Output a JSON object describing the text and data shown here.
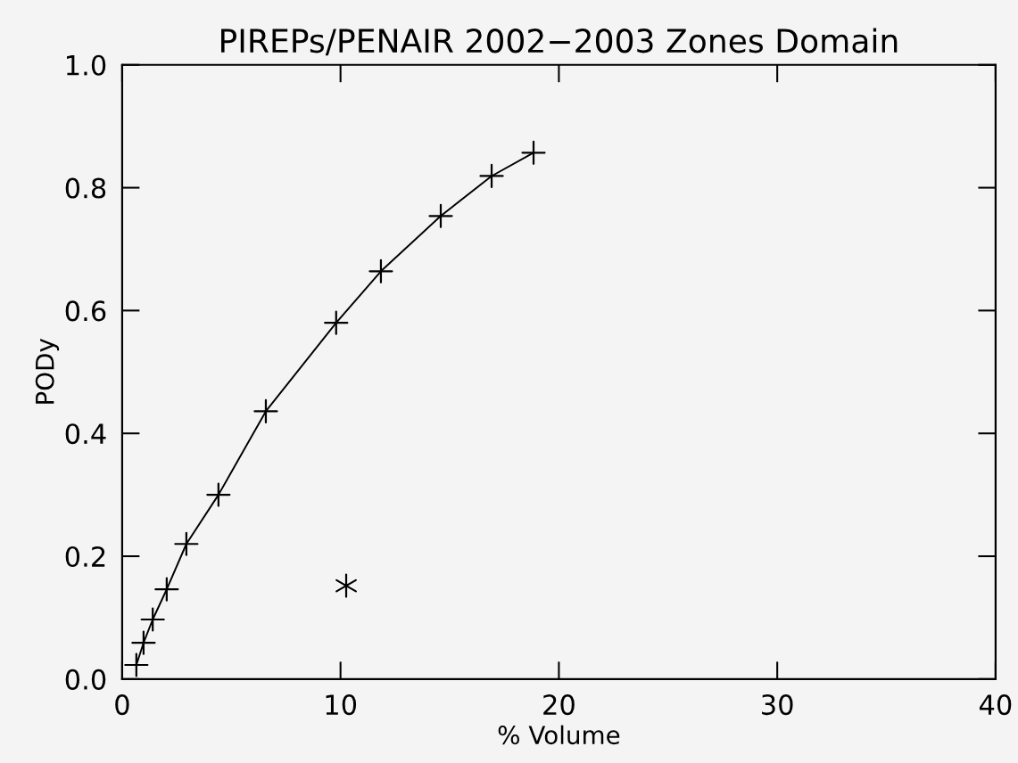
{
  "chart_data": {
    "type": "line",
    "title": "PIREPs/PENAIR 2002−2003 Zones Domain",
    "xlabel": "% Volume",
    "ylabel": "PODy",
    "xlim": [
      0,
      40
    ],
    "ylim": [
      0,
      1
    ],
    "xticks": [
      0,
      10,
      20,
      30,
      40
    ],
    "yticks": [
      {
        "value": 0,
        "label": "0.0"
      },
      0.2,
      0.4,
      0.6,
      0.8,
      {
        "value": 1,
        "label": "1.0"
      }
    ],
    "grid": false,
    "legend": false,
    "series": [
      {
        "marker": "cross",
        "color": "#000000",
        "x": [
          0.65,
          0.98,
          1.4,
          2.04,
          2.94,
          4.41,
          6.58,
          9.8,
          11.85,
          14.59,
          16.92,
          18.84
        ],
        "values": [
          0.023,
          0.059,
          0.097,
          0.146,
          0.22,
          0.3,
          0.436,
          0.58,
          0.664,
          0.754,
          0.819,
          0.857
        ]
      },
      {
        "type": "scatter",
        "marker": "cross",
        "color": "#000000",
        "x": [
          10.26
        ],
        "values": [
          0.152
        ]
      }
    ]
  }
}
